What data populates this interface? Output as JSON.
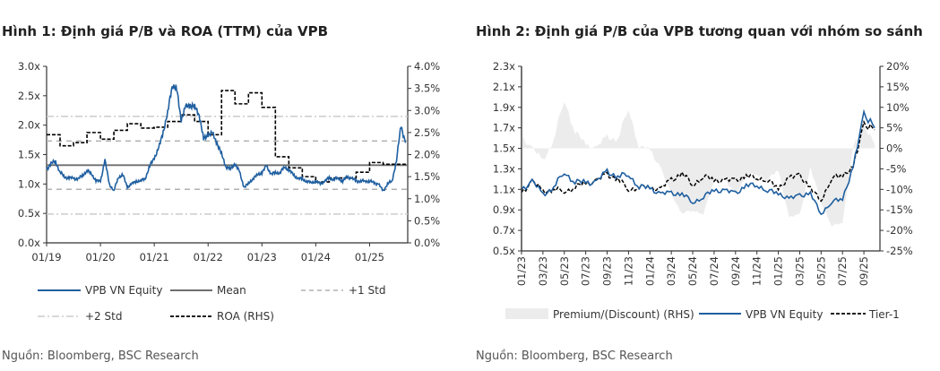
{
  "chart_data": [
    {
      "title": "Hình 1: Định giá P/B và ROA (TTM) của VPB",
      "type": "line",
      "y_ticks": [
        "0.0x",
        "0.5x",
        "1.0x",
        "1.5x",
        "2.0x",
        "2.5x",
        "3.0x"
      ],
      "y2_ticks": [
        "0.0%",
        "0.5%",
        "1.0%",
        "1.5%",
        "2.0%",
        "2.5%",
        "3.0%",
        "3.5%",
        "4.0%"
      ],
      "x_ticks": [
        "01/19",
        "01/20",
        "01/21",
        "01/22",
        "01/23",
        "01/24",
        "01/25"
      ],
      "ylim": [
        0,
        3
      ],
      "y2lim": [
        0,
        4
      ],
      "x_start": "01/2019",
      "x_end": "09/2025",
      "series": [
        {
          "name": "VPB VN Equity",
          "axis": "left",
          "color": "#1f5fa0",
          "style": "solid",
          "frequency": "monthly",
          "values": [
            1.25,
            1.35,
            1.38,
            1.2,
            1.12,
            1.1,
            1.1,
            1.08,
            1.15,
            1.22,
            1.18,
            1.05,
            1.05,
            1.4,
            1.0,
            0.88,
            1.12,
            1.15,
            0.95,
            1.0,
            1.05,
            1.05,
            1.1,
            1.3,
            1.45,
            1.6,
            1.9,
            2.2,
            2.7,
            2.6,
            2.1,
            2.3,
            2.35,
            2.3,
            2.2,
            1.75,
            1.85,
            1.85,
            1.7,
            1.5,
            1.3,
            1.25,
            1.35,
            1.2,
            0.95,
            1.0,
            1.1,
            1.15,
            1.2,
            1.3,
            1.18,
            1.18,
            1.2,
            1.28,
            1.25,
            1.15,
            1.1,
            1.08,
            1.05,
            1.02,
            1.05,
            1.0,
            1.05,
            1.1,
            1.08,
            1.1,
            1.05,
            1.12,
            1.1,
            1.05,
            1.05,
            1.05,
            1.05,
            1.02,
            1.0,
            0.88,
            1.0,
            1.05,
            1.4,
            2.0,
            1.7
          ]
        },
        {
          "name": "Mean",
          "axis": "left",
          "color": "#6e6e6e",
          "style": "solid",
          "value": 1.32
        },
        {
          "name": "+1 Std",
          "axis": "left",
          "color": "#b0b0b0",
          "style": "dashed",
          "values_const": [
            1.73,
            0.91
          ]
        },
        {
          "name": "+2 Std",
          "axis": "left",
          "color": "#cccccc",
          "style": "dashdot",
          "values_const": [
            2.15,
            0.49
          ]
        },
        {
          "name": "ROA (RHS)",
          "axis": "right",
          "color": "#000000",
          "style": "dashed-step",
          "frequency": "quarterly",
          "values": [
            2.45,
            2.2,
            2.27,
            2.5,
            2.35,
            2.55,
            2.7,
            2.6,
            2.62,
            2.75,
            2.9,
            2.75,
            2.45,
            3.45,
            3.15,
            3.4,
            3.07,
            1.95,
            1.7,
            1.5,
            1.38,
            1.47,
            1.47,
            1.6,
            1.82,
            1.78,
            1.78
          ]
        }
      ],
      "source": "Nguồn: Bloomberg, BSC Research"
    },
    {
      "title": "Hình 2: Định giá P/B của VPB tương quan với nhóm so sánh",
      "type": "line",
      "y_ticks": [
        "0.5x",
        "0.7x",
        "0.9x",
        "1.1x",
        "1.3x",
        "1.5x",
        "1.7x",
        "1.9x",
        "2.1x",
        "2.3x"
      ],
      "y2_ticks": [
        "-25%",
        "-20%",
        "-15%",
        "-10%",
        "-5%",
        "0%",
        "5%",
        "10%",
        "15%",
        "20%"
      ],
      "x_ticks": [
        "01/23",
        "03/23",
        "05/23",
        "07/23",
        "09/23",
        "11/23",
        "01/24",
        "03/24",
        "05/24",
        "07/24",
        "09/24",
        "11/24",
        "01/25",
        "03/25",
        "05/25",
        "07/25",
        "09/25"
      ],
      "ylim": [
        0.5,
        2.3
      ],
      "y2lim": [
        -25,
        20
      ],
      "x_start": "01/2023",
      "x_end": "10/2025",
      "series": [
        {
          "name": "Premium/(Discount) (RHS)",
          "axis": "right",
          "color": "#ececec",
          "style": "area",
          "frequency": "monthly",
          "values": [
            3,
            0,
            -3,
            2,
            12,
            4,
            1,
            0,
            3,
            2,
            10,
            0,
            0,
            -5,
            -11,
            -16,
            -15,
            -16,
            -8,
            -8,
            -11,
            -7,
            -6,
            -8,
            -5,
            -17,
            -16,
            -5,
            -13,
            -19,
            -18,
            0,
            6,
            1
          ]
        },
        {
          "name": "VPB VN Equity",
          "axis": "left",
          "color": "#1f5fa0",
          "style": "solid",
          "frequency": "monthly",
          "values": [
            1.1,
            1.18,
            1.05,
            1.12,
            1.27,
            1.17,
            1.17,
            1.17,
            1.28,
            1.22,
            1.25,
            1.12,
            1.12,
            1.05,
            1.07,
            1.05,
            0.98,
            1.02,
            1.1,
            1.08,
            1.07,
            1.13,
            1.15,
            1.08,
            1.07,
            1.0,
            1.05,
            1.05,
            0.87,
            0.97,
            1.02,
            1.3,
            1.85,
            1.7
          ]
        },
        {
          "name": "Tier-1",
          "axis": "left",
          "color": "#000000",
          "style": "dashed",
          "frequency": "monthly",
          "values": [
            1.07,
            1.18,
            1.08,
            1.1,
            1.08,
            1.12,
            1.16,
            1.18,
            1.25,
            1.2,
            1.1,
            1.12,
            1.12,
            1.1,
            1.2,
            1.25,
            1.15,
            1.22,
            1.2,
            1.18,
            1.2,
            1.22,
            1.22,
            1.18,
            1.12,
            1.2,
            1.25,
            1.1,
            1.0,
            1.2,
            1.25,
            1.3,
            1.75,
            1.68
          ]
        }
      ],
      "source": "Nguồn: Bloomberg, BSC Research"
    }
  ]
}
